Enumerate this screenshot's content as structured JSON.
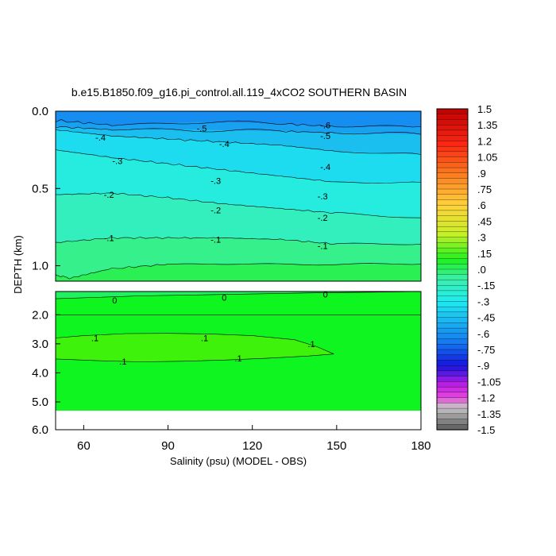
{
  "chart_data": {
    "type": "heatmap",
    "title": "b.e15.B1850.f09_g16.pi_control.all.119_4xCO2 SOUTHERN BASIN",
    "xlabel": "Salinity (psu) (MODEL - OBS)",
    "ylabel": "DEPTH (km)",
    "xlim": [
      50,
      180
    ],
    "x_ticks": [
      60,
      90,
      120,
      150,
      180
    ],
    "upper_panel": {
      "ylim": [
        0.0,
        1.1
      ],
      "y_ticks": [
        "0.0",
        "0.5",
        "1.0"
      ],
      "contours": [
        {
          "label": "-.6",
          "points": [
            [
              50,
              0.06
            ],
            [
              70,
              0.09
            ],
            [
              100,
              0.07
            ],
            [
              130,
              0.08
            ],
            [
              150,
              0.1
            ],
            [
              180,
              0.1
            ]
          ]
        },
        {
          "label": "-.5",
          "points": [
            [
              50,
              0.1
            ],
            [
              70,
              0.12
            ],
            [
              100,
              0.12
            ],
            [
              130,
              0.13
            ],
            [
              150,
              0.14
            ],
            [
              180,
              0.15
            ]
          ]
        },
        {
          "label": "-.4",
          "points": [
            [
              50,
              0.12
            ],
            [
              70,
              0.16
            ],
            [
              90,
              0.18
            ],
            [
              110,
              0.2
            ],
            [
              130,
              0.22
            ],
            [
              150,
              0.26
            ],
            [
              180,
              0.28
            ]
          ]
        },
        {
          "label": "-.3",
          "points": [
            [
              50,
              0.25
            ],
            [
              70,
              0.3
            ],
            [
              90,
              0.34
            ],
            [
              110,
              0.38
            ],
            [
              130,
              0.42
            ],
            [
              150,
              0.46
            ],
            [
              180,
              0.46
            ]
          ]
        },
        {
          "label": "-.2",
          "points": [
            [
              50,
              0.54
            ],
            [
              70,
              0.53
            ],
            [
              90,
              0.56
            ],
            [
              110,
              0.6
            ],
            [
              130,
              0.63
            ],
            [
              150,
              0.66
            ],
            [
              180,
              0.69
            ]
          ]
        },
        {
          "label": "-.1",
          "points": [
            [
              50,
              0.85
            ],
            [
              70,
              0.82
            ],
            [
              90,
              0.82
            ],
            [
              110,
              0.82
            ],
            [
              130,
              0.83
            ],
            [
              150,
              0.86
            ],
            [
              180,
              0.86
            ]
          ]
        },
        {
          "label": "",
          "points": [
            [
              50,
              1.06
            ],
            [
              55,
              1.08
            ],
            [
              70,
              1.02
            ],
            [
              90,
              0.99
            ],
            [
              120,
              0.99
            ],
            [
              150,
              0.99
            ],
            [
              180,
              0.99
            ]
          ]
        }
      ],
      "contour_labels": [
        {
          "text": "-.6",
          "x": 146,
          "y": 0.09
        },
        {
          "text": "-.5",
          "x": 102,
          "y": 0.11
        },
        {
          "text": "-.5",
          "x": 146,
          "y": 0.16
        },
        {
          "text": "-.4",
          "x": 66,
          "y": 0.17
        },
        {
          "text": "-.4",
          "x": 110,
          "y": 0.21
        },
        {
          "text": "-.4",
          "x": 146,
          "y": 0.36
        },
        {
          "text": "-.3",
          "x": 72,
          "y": 0.32
        },
        {
          "text": "-.3",
          "x": 107,
          "y": 0.45
        },
        {
          "text": "-.3",
          "x": 145,
          "y": 0.55
        },
        {
          "text": "-.2",
          "x": 69,
          "y": 0.54
        },
        {
          "text": "-.2",
          "x": 107,
          "y": 0.64
        },
        {
          "text": "-.2",
          "x": 145,
          "y": 0.69
        },
        {
          "text": "-.1",
          "x": 69,
          "y": 0.82
        },
        {
          "text": "-.1",
          "x": 107,
          "y": 0.83
        },
        {
          "text": "-.1",
          "x": 145,
          "y": 0.87
        }
      ]
    },
    "lower_panel": {
      "ylim": [
        1.2,
        5.3
      ],
      "y_ticks": [
        "2.0",
        "3.0",
        "4.0",
        "5.0"
      ],
      "contours": [
        {
          "label": "0",
          "points": [
            [
              50,
              1.45
            ],
            [
              80,
              1.35
            ],
            [
              110,
              1.3
            ],
            [
              140,
              1.25
            ],
            [
              180,
              1.2
            ]
          ]
        },
        {
          "label": "0",
          "points": [
            [
              50,
              2.0
            ],
            [
              180,
              2.0
            ]
          ]
        }
      ],
      "contour_labels": [
        {
          "text": "0",
          "x": 71,
          "y": 1.5
        },
        {
          "text": "0",
          "x": 110,
          "y": 1.4
        },
        {
          "text": "0",
          "x": 146,
          "y": 1.3
        },
        {
          "text": ".1",
          "x": 64,
          "y": 2.8
        },
        {
          "text": ".1",
          "x": 103,
          "y": 2.8
        },
        {
          "text": ".1",
          "x": 141,
          "y": 3.0
        },
        {
          "text": ".1",
          "x": 74,
          "y": 3.6
        },
        {
          "text": ".1",
          "x": 115,
          "y": 3.5
        }
      ]
    },
    "colorbar": {
      "min": -1.5,
      "max": 1.5,
      "step": 0.05,
      "labels": [
        "1.5",
        "1.35",
        "1.2",
        "1.05",
        ".9",
        ".75",
        ".6",
        ".45",
        ".3",
        ".15",
        ".0",
        "-.15",
        "-.3",
        "-.45",
        "-.6",
        "-.75",
        "-.9",
        "-1.05",
        "-1.2",
        "-1.35",
        "-1.5"
      ]
    }
  }
}
